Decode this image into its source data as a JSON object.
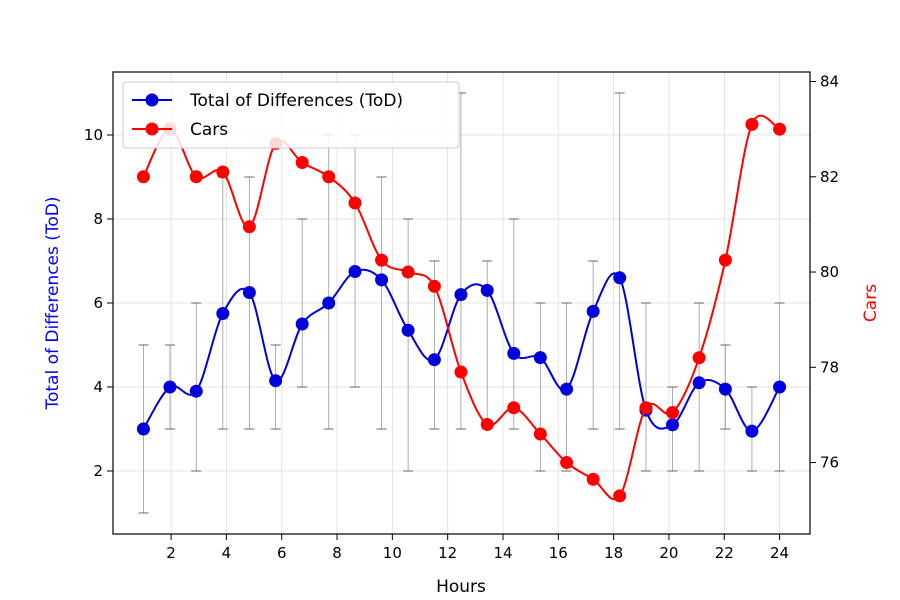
{
  "chart_data": {
    "type": "line",
    "title": "",
    "xlabel": "Hours",
    "ylabel_left": "Total of Differences (ToD)",
    "ylabel_right": "Cars",
    "xlim": [
      -0.1,
      25.1
    ],
    "ylim_left": [
      0.5,
      11.5
    ],
    "ylim_right": [
      74.5,
      84.2
    ],
    "x_ticks": [
      2,
      4,
      6,
      8,
      10,
      12,
      14,
      16,
      18,
      20,
      22,
      24
    ],
    "y_ticks_left": [
      2,
      4,
      6,
      8,
      10
    ],
    "y_ticks_right": [
      76,
      78,
      80,
      82,
      84
    ],
    "grid": true,
    "legend_position": "upper-left",
    "x": [
      1.0,
      1.96,
      2.91,
      3.87,
      4.83,
      5.78,
      6.74,
      7.7,
      8.65,
      9.61,
      10.57,
      11.52,
      12.48,
      13.43,
      14.39,
      15.35,
      16.3,
      17.26,
      18.22,
      19.17,
      20.13,
      21.09,
      22.04,
      23.0,
      24.0
    ],
    "series": [
      {
        "name": "Total of Differences (ToD)",
        "axis": "left",
        "color": "#0000dd",
        "values": [
          3.0,
          4.0,
          3.9,
          5.75,
          6.25,
          4.15,
          5.5,
          6.0,
          6.75,
          6.55,
          5.35,
          4.65,
          6.2,
          6.3,
          4.8,
          4.7,
          3.95,
          5.8,
          6.6,
          3.45,
          3.1,
          4.1,
          3.95,
          2.95,
          4.0
        ],
        "error_low": [
          1.0,
          3.0,
          2.0,
          3.0,
          3.0,
          3.0,
          4.0,
          3.0,
          4.0,
          3.0,
          2.0,
          3.0,
          3.0,
          3.0,
          3.0,
          2.0,
          2.0,
          3.0,
          3.0,
          2.0,
          2.0,
          2.0,
          3.0,
          2.0,
          2.0
        ],
        "error_high": [
          5.0,
          5.0,
          6.0,
          9.0,
          9.0,
          5.0,
          8.0,
          10.0,
          10.0,
          9.0,
          8.0,
          7.0,
          11.0,
          7.0,
          8.0,
          6.0,
          6.0,
          7.0,
          11.0,
          6.0,
          4.0,
          6.0,
          5.0,
          4.0,
          6.0
        ]
      },
      {
        "name": "Cars",
        "axis": "right",
        "color": "#ff0000",
        "values": [
          82.0,
          83.0,
          82.0,
          82.1,
          80.95,
          82.7,
          82.3,
          82.0,
          81.45,
          80.25,
          80.0,
          79.7,
          77.9,
          76.8,
          77.15,
          76.6,
          76.0,
          75.65,
          75.3,
          77.15,
          77.05,
          78.2,
          80.25,
          83.1,
          83.0
        ]
      }
    ]
  }
}
